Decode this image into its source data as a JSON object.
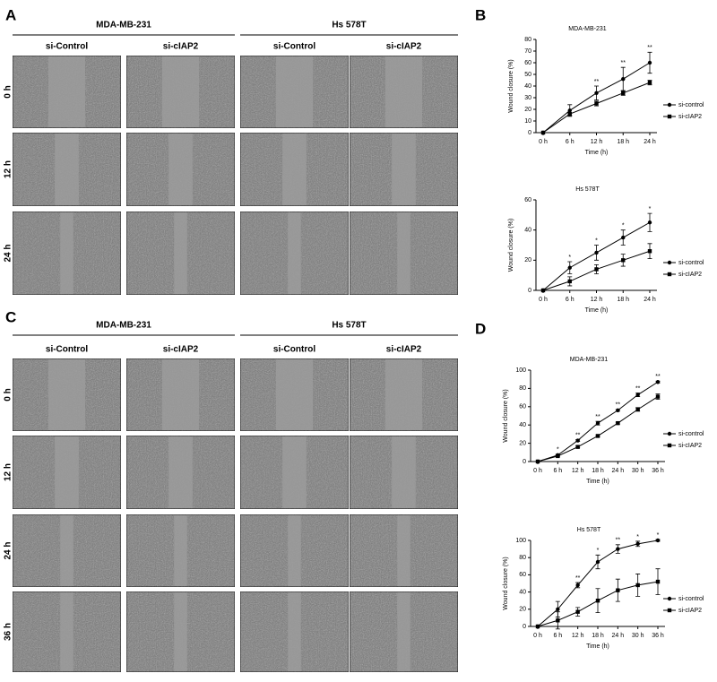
{
  "panels": [
    {
      "letter": "A",
      "groups": [
        "MDA-MB-231",
        "Hs 578T"
      ],
      "columns": [
        "si-Control",
        "si-cIAP2",
        "si-Control",
        "si-cIAP2"
      ],
      "rows": [
        "0 h",
        "12 h",
        "24 h"
      ]
    },
    {
      "letter": "C",
      "groups": [
        "MDA-MB-231",
        "Hs 578T"
      ],
      "columns": [
        "si-Control",
        "si-cIAP2",
        "si-Control",
        "si-cIAP2"
      ],
      "rows": [
        "0 h",
        "12 h",
        "24 h",
        "36 h"
      ]
    }
  ],
  "chart_panels": [
    "B",
    "D"
  ],
  "chart_data": [
    {
      "type": "line",
      "title": "MDA-MB-231",
      "xlabel": "Time (h)",
      "ylabel": "Wound closure (%)",
      "categories": [
        "0 h",
        "6 h",
        "12 h",
        "18 h",
        "24 h"
      ],
      "series": [
        {
          "name": "si-control",
          "marker": "circle",
          "color": "#000000",
          "values": [
            0,
            19,
            34,
            46,
            60
          ],
          "errors": [
            0,
            5,
            6,
            10,
            9
          ]
        },
        {
          "name": "si-cIAP2",
          "marker": "square",
          "color": "#000000",
          "values": [
            0,
            16,
            25,
            34,
            43
          ],
          "errors": [
            0,
            1,
            2,
            2,
            2
          ]
        }
      ],
      "annotations": [
        null,
        null,
        "**",
        "**",
        "**"
      ],
      "ylim": [
        0,
        80
      ],
      "yticks": [
        0,
        10,
        20,
        30,
        40,
        50,
        60,
        70,
        80
      ]
    },
    {
      "type": "line",
      "title": "Hs 578T",
      "xlabel": "Time (h)",
      "ylabel": "Wound closure (%)",
      "categories": [
        "0 h",
        "6 h",
        "12 h",
        "18 h",
        "24 h"
      ],
      "series": [
        {
          "name": "si-control",
          "marker": "circle",
          "color": "#000000",
          "values": [
            0,
            15,
            25,
            35,
            45
          ],
          "errors": [
            0,
            4,
            5,
            5,
            6
          ]
        },
        {
          "name": "si-cIAP2",
          "marker": "square",
          "color": "#000000",
          "values": [
            0,
            6,
            14,
            20,
            26
          ],
          "errors": [
            0,
            3,
            3,
            4,
            5
          ]
        }
      ],
      "annotations": [
        null,
        "*",
        "*",
        "*",
        "*"
      ],
      "ylim": [
        0,
        60
      ],
      "yticks": [
        0,
        20,
        40,
        60
      ]
    },
    {
      "type": "line",
      "title": "MDA-MB-231",
      "xlabel": "Time (h)",
      "ylabel": "Wound closure (%)",
      "categories": [
        "0 h",
        "6 h",
        "12 h",
        "18 h",
        "24 h",
        "30 h",
        "36 h"
      ],
      "series": [
        {
          "name": "si-control",
          "marker": "circle",
          "color": "#000000",
          "values": [
            0,
            7,
            23,
            42,
            56,
            73,
            87
          ],
          "errors": [
            0,
            1,
            1,
            2,
            1,
            2,
            1
          ]
        },
        {
          "name": "si-cIAP2",
          "marker": "square",
          "color": "#000000",
          "values": [
            0,
            6,
            16,
            28,
            42,
            57,
            71
          ],
          "errors": [
            0,
            1,
            1,
            1,
            1,
            2,
            3
          ]
        }
      ],
      "annotations": [
        null,
        "*",
        "**",
        "**",
        "**",
        "**",
        "**"
      ],
      "ylim": [
        0,
        100
      ],
      "yticks": [
        0,
        20,
        40,
        60,
        80,
        100
      ]
    },
    {
      "type": "line",
      "title": "Hs 578T",
      "xlabel": "Time (h)",
      "ylabel": "Wound closure (%)",
      "categories": [
        "0 h",
        "6 h",
        "12 h",
        "18 h",
        "24 h",
        "30 h",
        "36 h"
      ],
      "series": [
        {
          "name": "si-control",
          "marker": "circle",
          "color": "#000000",
          "values": [
            0,
            20,
            48,
            75,
            90,
            96,
            100
          ],
          "errors": [
            0,
            9,
            3,
            8,
            5,
            3,
            1
          ]
        },
        {
          "name": "si-cIAP2",
          "marker": "square",
          "color": "#000000",
          "values": [
            0,
            7,
            17,
            30,
            42,
            48,
            52
          ],
          "errors": [
            0,
            10,
            5,
            14,
            13,
            13,
            15
          ]
        }
      ],
      "annotations": [
        null,
        null,
        "**",
        "*",
        "**",
        "*",
        "*"
      ],
      "ylim": [
        0,
        100
      ],
      "yticks": [
        0,
        20,
        40,
        60,
        80,
        100
      ]
    }
  ]
}
